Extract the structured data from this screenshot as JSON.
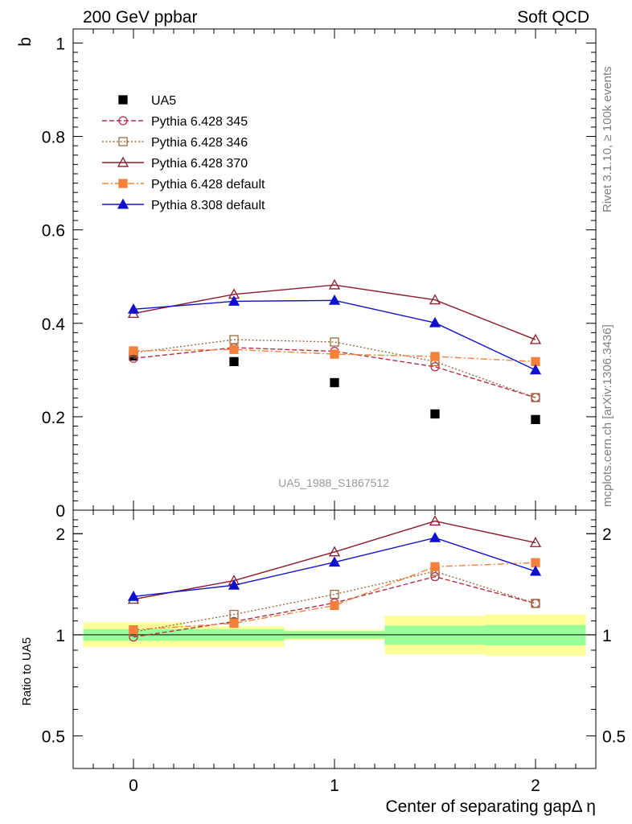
{
  "header": {
    "left_title": "200 GeV ppbar",
    "right_title": "Soft QCD"
  },
  "side_labels": {
    "rivet": "Rivet 3.1.10, ≥ 100k events",
    "mcplots": "mcplots.cern.ch [arXiv:1306.3436]"
  },
  "analysis_label": "UA5_1988_S1867512",
  "chart_data": [
    {
      "type": "line",
      "ylabel": "b",
      "xlim": [
        -0.3,
        2.3
      ],
      "ylim": [
        0,
        1.03
      ],
      "x_ticks": [
        0,
        1,
        2
      ],
      "y_ticks": [
        0,
        0.2,
        0.4,
        0.6,
        0.8,
        1
      ],
      "y_tick_labels": [
        "0",
        "0.2",
        "0.4",
        "0.6",
        "0.8",
        "1"
      ],
      "grid": false,
      "legend_position": "top-left",
      "x": [
        0,
        0.5,
        1,
        1.5,
        2
      ],
      "series": [
        {
          "name": "UA5",
          "marker": "filled-square",
          "dash": "none",
          "color": "#000000",
          "values": [
            0.33,
            0.318,
            0.273,
            0.206,
            0.194
          ]
        },
        {
          "name": "Pythia 6.428 345",
          "marker": "open-circle",
          "dash": "dashed",
          "color": "#b03048",
          "values": [
            0.325,
            0.348,
            0.34,
            0.307,
            0.241
          ]
        },
        {
          "name": "Pythia 6.428 346",
          "marker": "open-square",
          "dash": "dotted",
          "color": "#9c6a3c",
          "values": [
            0.337,
            0.365,
            0.36,
            0.318,
            0.241
          ]
        },
        {
          "name": "Pythia 6.428 370",
          "marker": "open-triangle",
          "dash": "solid",
          "color": "#8b1a2a",
          "values": [
            0.421,
            0.462,
            0.482,
            0.45,
            0.365
          ]
        },
        {
          "name": "Pythia 6.428 default",
          "marker": "filled-square",
          "dash": "dash-dot",
          "color": "#f5803c",
          "values": [
            0.341,
            0.344,
            0.334,
            0.329,
            0.318
          ]
        },
        {
          "name": "Pythia 8.308 default",
          "marker": "filled-triangle",
          "dash": "solid",
          "color": "#1010cc",
          "values": [
            0.43,
            0.447,
            0.449,
            0.401,
            0.3
          ]
        }
      ]
    },
    {
      "type": "line",
      "ylabel": "Ratio to UA5",
      "xlabel": "Center of separating gapΔ η",
      "scale": "log",
      "xlim": [
        -0.3,
        2.3
      ],
      "ylim": [
        0.4,
        2.35
      ],
      "x_ticks": [
        0,
        1,
        2
      ],
      "y_ticks": [
        0.5,
        1,
        2
      ],
      "y_tick_labels": [
        "0.5",
        "1",
        "2"
      ],
      "reference_line": 1,
      "bands": [
        {
          "x_range": [
            -0.25,
            0.25
          ],
          "stat": [
            0.96,
            1.04
          ],
          "total": [
            0.92,
            1.09
          ]
        },
        {
          "x_range": [
            0.25,
            0.75
          ],
          "stat": [
            0.96,
            1.04
          ],
          "total": [
            0.92,
            1.06
          ]
        },
        {
          "x_range": [
            0.75,
            1.25
          ],
          "stat": [
            0.975,
            1.025
          ],
          "total": [
            0.965,
            1.035
          ]
        },
        {
          "x_range": [
            1.25,
            1.75
          ],
          "stat": [
            0.935,
            1.065
          ],
          "total": [
            0.875,
            1.14
          ]
        },
        {
          "x_range": [
            1.75,
            2.25
          ],
          "stat": [
            0.93,
            1.07
          ],
          "total": [
            0.865,
            1.15
          ]
        }
      ],
      "x": [
        0,
        0.5,
        1,
        1.5,
        2
      ],
      "series": [
        {
          "name": "Pythia 6.428 345",
          "marker": "open-circle",
          "dash": "dashed",
          "color": "#b03048",
          "values": [
            0.985,
            1.095,
            1.245,
            1.49,
            1.24
          ]
        },
        {
          "name": "Pythia 6.428 346",
          "marker": "open-square",
          "dash": "dotted",
          "color": "#9c6a3c",
          "values": [
            1.02,
            1.15,
            1.32,
            1.545,
            1.24
          ]
        },
        {
          "name": "Pythia 6.428 370",
          "marker": "open-triangle",
          "dash": "solid",
          "color": "#8b1a2a",
          "values": [
            1.275,
            1.45,
            1.765,
            2.18,
            1.88
          ]
        },
        {
          "name": "Pythia 6.428 default",
          "marker": "filled-square",
          "dash": "dash-dot",
          "color": "#f5803c",
          "values": [
            1.035,
            1.082,
            1.223,
            1.595,
            1.64
          ]
        },
        {
          "name": "Pythia 8.308 default",
          "marker": "filled-triangle",
          "dash": "solid",
          "color": "#1010cc",
          "values": [
            1.3,
            1.405,
            1.645,
            1.945,
            1.545
          ]
        }
      ]
    }
  ]
}
